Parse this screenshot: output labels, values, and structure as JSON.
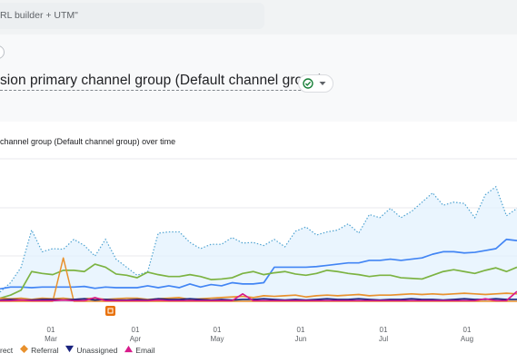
{
  "search": {
    "text": "RL builder + UTM\""
  },
  "header": {
    "dimension_title": "sion primary channel group (Default channel group)"
  },
  "card": {
    "title": "channel group (Default channel group) over time"
  },
  "legend": {
    "items": [
      {
        "label": "rect",
        "icon": "none",
        "color": "#4285f4"
      },
      {
        "label": "Referral",
        "icon": "diamond-icon",
        "color": "#e8912d"
      },
      {
        "label": "Unassigned",
        "icon": "triangle-down-icon",
        "color": "#1a237e"
      },
      {
        "label": "Email",
        "icon": "triangle-up-icon",
        "color": "#d81b8b"
      }
    ]
  },
  "colors": {
    "direct": "#4285f4",
    "organic": "#7cb342",
    "total": "#4fa3d1",
    "referral": "#e8912d",
    "unassigned": "#1a237e",
    "email": "#d81b8b",
    "annotation": "#e8710a"
  },
  "chart_data": {
    "type": "line",
    "x_ticks": [
      {
        "day": "01",
        "month": "Mar"
      },
      {
        "day": "01",
        "month": "Apr"
      },
      {
        "day": "01",
        "month": "May"
      },
      {
        "day": "01",
        "month": "Jun"
      },
      {
        "day": "01",
        "month": "Jul"
      },
      {
        "day": "01",
        "month": "Aug"
      }
    ],
    "ylim": [
      0,
      230
    ],
    "grid": true,
    "legend_position": "bottom",
    "annotation_icon": "annotation-icon",
    "series": [
      {
        "key": "total",
        "style": "dotted-area",
        "values": [
          15,
          30,
          55,
          115,
          80,
          85,
          84,
          100,
          90,
          73,
          100,
          68,
          55,
          42,
          48,
          110,
          112,
          112,
          95,
          85,
          92,
          92,
          103,
          94,
          95,
          90,
          100,
          88,
          113,
          120,
          107,
          112,
          115,
          125,
          110,
          140,
          135,
          150,
          135,
          145,
          160,
          175,
          155,
          160,
          158,
          135,
          172,
          185,
          138,
          150
        ]
      },
      {
        "key": "direct",
        "style": "line",
        "values": [
          20,
          23,
          23,
          22,
          23,
          23,
          23,
          23,
          24,
          21,
          23,
          22,
          22,
          22,
          25,
          22,
          25,
          22,
          28,
          23,
          27,
          25,
          30,
          28,
          28,
          30,
          55,
          55,
          55,
          55,
          56,
          58,
          60,
          62,
          62,
          66,
          66,
          68,
          66,
          68,
          70,
          76,
          80,
          80,
          78,
          79,
          82,
          85,
          100,
          98
        ]
      },
      {
        "key": "organic",
        "style": "line",
        "values": [
          5,
          10,
          18,
          48,
          45,
          43,
          50,
          50,
          48,
          60,
          55,
          44,
          42,
          38,
          47,
          43,
          40,
          40,
          43,
          40,
          35,
          36,
          38,
          45,
          48,
          43,
          46,
          48,
          44,
          42,
          45,
          50,
          48,
          45,
          43,
          40,
          42,
          42,
          38,
          37,
          36,
          42,
          48,
          51,
          48,
          45,
          50,
          54,
          48,
          55
        ]
      },
      {
        "key": "referral",
        "style": "line",
        "values": [
          0,
          0,
          0,
          0,
          0,
          0,
          70,
          0,
          0,
          0,
          0,
          0,
          0,
          0,
          0,
          0,
          0,
          0,
          0,
          0,
          0,
          0,
          0,
          0,
          0,
          0,
          0,
          0,
          0,
          0,
          0,
          0,
          0,
          0,
          0,
          0,
          0,
          0,
          0,
          0,
          0,
          0,
          0,
          0,
          0,
          0,
          0,
          0,
          0,
          0
        ]
      },
      {
        "key": "referral_tail",
        "style": "line",
        "values": [
          5,
          4,
          5,
          3,
          5,
          4,
          5,
          3,
          4,
          5,
          3,
          4,
          5,
          5,
          3,
          4,
          5,
          6,
          3,
          4,
          5,
          6,
          7,
          8,
          6,
          9,
          8,
          9,
          10,
          7,
          9,
          10,
          9,
          10,
          11,
          9,
          10,
          10,
          11,
          12,
          11,
          12,
          11,
          12,
          13,
          12,
          11,
          12,
          13,
          12
        ]
      },
      {
        "key": "unassigned",
        "style": "line",
        "values": [
          2,
          3,
          2,
          2,
          3,
          3,
          2,
          3,
          4,
          2,
          3,
          2,
          2,
          3,
          2,
          4,
          3,
          3,
          4,
          3,
          2,
          3,
          2,
          3,
          3,
          4,
          3,
          2,
          3,
          2,
          3,
          4,
          3,
          3,
          4,
          3,
          2,
          3,
          3,
          4,
          3,
          3,
          2,
          3,
          4,
          3,
          3,
          4,
          3,
          3
        ]
      },
      {
        "key": "email",
        "style": "line",
        "values": [
          1,
          1,
          2,
          1,
          1,
          1,
          2,
          1,
          1,
          6,
          1,
          1,
          1,
          1,
          1,
          2,
          1,
          1,
          1,
          1,
          1,
          1,
          1,
          12,
          1,
          1,
          1,
          1,
          1,
          1,
          1,
          1,
          1,
          1,
          1,
          1,
          1,
          1,
          1,
          1,
          1,
          1,
          1,
          1,
          1,
          1,
          4,
          1,
          1,
          16
        ]
      }
    ]
  }
}
